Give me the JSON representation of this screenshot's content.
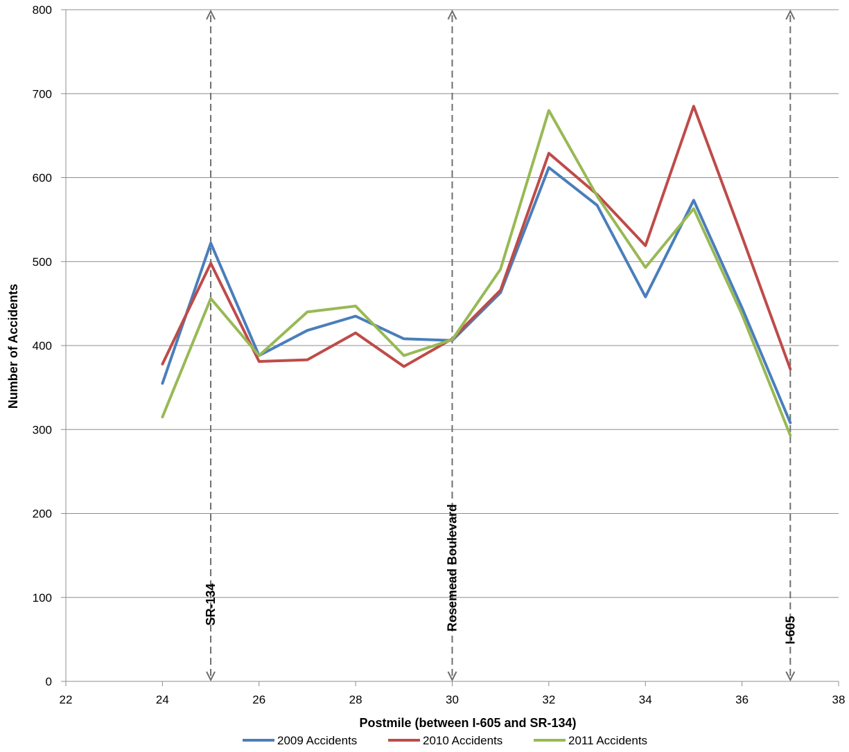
{
  "chart_data": {
    "type": "line",
    "title": "",
    "xlabel": "Postmile (between I-605 and SR-134)",
    "ylabel": "Number of Accidents",
    "xlim": [
      22,
      38
    ],
    "ylim": [
      0,
      800
    ],
    "x_ticks": [
      22,
      24,
      26,
      28,
      30,
      32,
      34,
      36,
      38
    ],
    "y_ticks": [
      0,
      100,
      200,
      300,
      400,
      500,
      600,
      700,
      800
    ],
    "grid": "horizontal",
    "legend_position": "bottom",
    "x": [
      24,
      25,
      26,
      27,
      28,
      29,
      30,
      31,
      32,
      33,
      34,
      35,
      36,
      37
    ],
    "series": [
      {
        "name": "2009 Accidents",
        "color": "#4a7ebb",
        "values": [
          355,
          522,
          388,
          418,
          435,
          408,
          406,
          463,
          612,
          567,
          458,
          573,
          445,
          308
        ]
      },
      {
        "name": "2010 Accidents",
        "color": "#be4b48",
        "values": [
          378,
          498,
          381,
          383,
          415,
          375,
          408,
          466,
          629,
          580,
          519,
          685,
          530,
          372
        ]
      },
      {
        "name": "2011 Accidents",
        "color": "#98b954",
        "values": [
          315,
          456,
          388,
          440,
          447,
          388,
          407,
          491,
          680,
          578,
          493,
          563,
          437,
          293
        ]
      }
    ],
    "annotations": [
      {
        "label": "SR-134",
        "x": 25
      },
      {
        "label": "Rosemead Boulevard",
        "x": 30
      },
      {
        "label": "I-605",
        "x": 37
      }
    ]
  }
}
